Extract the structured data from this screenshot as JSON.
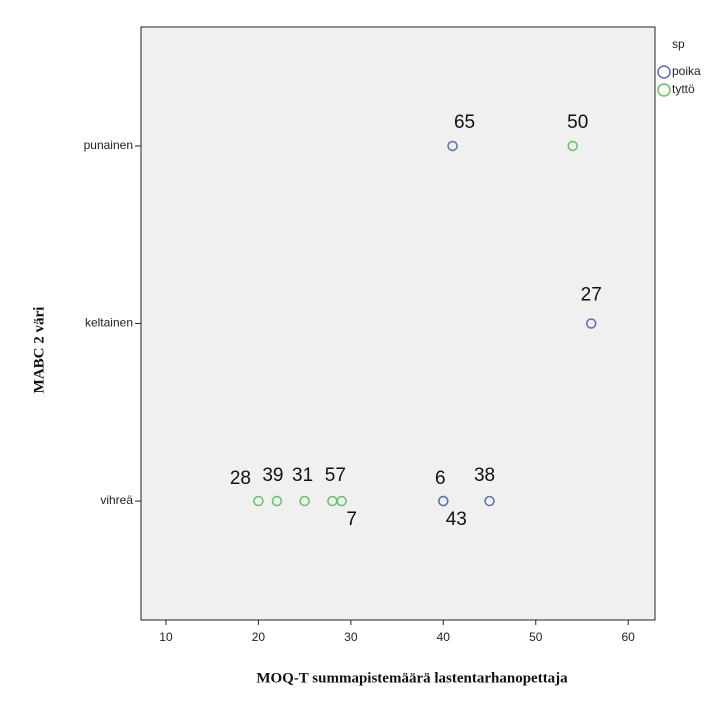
{
  "chart_data": {
    "type": "scatter",
    "x_label": "MOQ-T summapistemäärä lastentarhanopettaja",
    "y_label": "MABC 2 väri",
    "categories": [
      "punainen",
      "keltainen",
      "vihreä"
    ],
    "xlim": [
      7.3,
      62.9
    ],
    "xticks": [
      10,
      20,
      30,
      40,
      50,
      60
    ],
    "grid": false,
    "legend_title": "sp",
    "legend_position": "outside-right",
    "series": [
      {
        "name": "poika",
        "color": "#5a6fb4",
        "x": [
          41,
          56,
          40,
          40,
          45
        ],
        "values": [
          "punainen",
          "keltainen",
          "vihreä",
          "vihreä",
          "vihreä"
        ],
        "point_labels": [
          "65",
          "27",
          "6",
          "43",
          "38"
        ]
      },
      {
        "name": "tyttö",
        "color": "#5fc35f",
        "x": [
          54,
          20,
          22,
          25,
          28,
          29
        ],
        "values": [
          "punainen",
          "vihreä",
          "vihreä",
          "vihreä",
          "vihreä",
          "vihreä"
        ],
        "point_labels": [
          "50",
          "28",
          "39",
          "31",
          "57",
          "7"
        ]
      }
    ]
  }
}
